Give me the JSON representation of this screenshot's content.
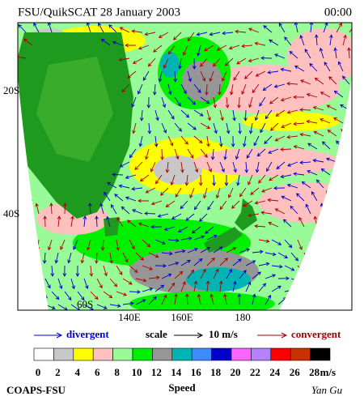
{
  "header": {
    "title": "FSU/QuikSCAT 28 January 2003",
    "time": "00:00"
  },
  "map": {
    "lat_labels": [
      "20S",
      "40S",
      "60S"
    ],
    "lon_labels": [
      "140E",
      "160E",
      "180"
    ]
  },
  "legend": {
    "divergent": "divergent",
    "scale": "scale",
    "scale_value": "10 m/s",
    "convergent": "convergent"
  },
  "colorbar": {
    "colors": [
      "#ffffff",
      "#c8c8c8",
      "#ffff00",
      "#ffc0c0",
      "#98fb98",
      "#00f000",
      "#969696",
      "#00b4b4",
      "#3c8cff",
      "#0000c8",
      "#ff64ff",
      "#b482ff",
      "#ff0000",
      "#c83200",
      "#000000"
    ],
    "ticks": [
      "0",
      "2",
      "4",
      "6",
      "8",
      "10",
      "12",
      "14",
      "16",
      "18",
      "20",
      "22",
      "24",
      "26",
      "28"
    ],
    "unit": "m/s",
    "label": "Speed"
  },
  "footer": {
    "credit": "COAPS-FSU",
    "author": "Yan Gu"
  }
}
